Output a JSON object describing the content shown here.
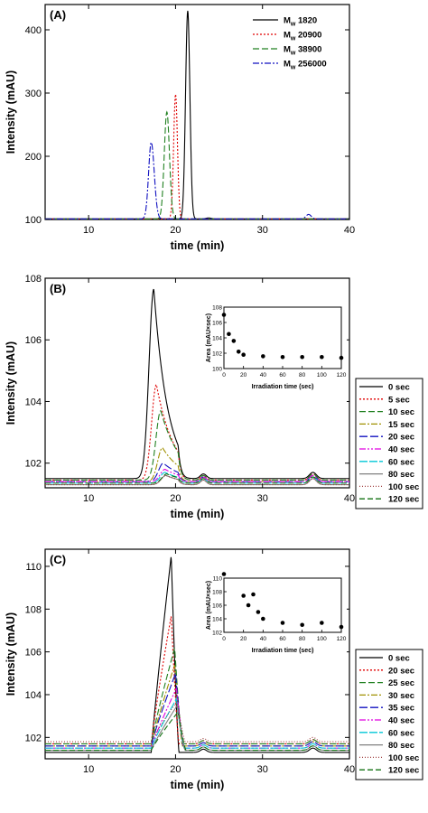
{
  "chart_data": [
    {
      "type": "line",
      "panel_label": "(A)",
      "xlabel": "time (min)",
      "ylabel": "Intensity (mAU)",
      "xlim": [
        5,
        40
      ],
      "ylim": [
        100,
        440
      ],
      "xticks": [
        10,
        20,
        30,
        40
      ],
      "yticks": [
        100,
        200,
        300,
        400
      ],
      "legend": "top-right",
      "series": [
        {
          "name": "Mw 1820",
          "label_main": "M",
          "label_sub": "w",
          "label_rest": " 1820",
          "color": "#000000",
          "dash": "",
          "baseline": 101,
          "peaks": [
            {
              "center": 21.4,
              "height": 329,
              "sigmaL": 0.25,
              "sigmaR": 0.25
            },
            {
              "center": 23.8,
              "height": 1.5,
              "sigmaL": 0.3,
              "sigmaR": 0.3
            }
          ]
        },
        {
          "name": "Mw 20900",
          "label_main": "M",
          "label_sub": "w",
          "label_rest": " 20900",
          "color": "#e00000",
          "dash": "2,2",
          "baseline": 101,
          "peaks": [
            {
              "center": 20.0,
              "height": 197,
              "sigmaL": 0.22,
              "sigmaR": 0.22
            }
          ]
        },
        {
          "name": "Mw 38900",
          "label_main": "M",
          "label_sub": "w",
          "label_rest": " 38900",
          "color": "#208020",
          "dash": "7,3",
          "baseline": 101,
          "peaks": [
            {
              "center": 19.0,
              "height": 169,
              "sigmaL": 0.3,
              "sigmaR": 0.3
            }
          ]
        },
        {
          "name": "Mw 256000",
          "label_main": "M",
          "label_sub": "w",
          "label_rest": " 256000",
          "color": "#1010c0",
          "dash": "7,2,2,2",
          "baseline": 101,
          "peaks": [
            {
              "center": 17.2,
              "height": 121,
              "sigmaL": 0.3,
              "sigmaR": 0.35
            },
            {
              "center": 35.3,
              "height": 7,
              "sigmaL": 0.3,
              "sigmaR": 0.3
            }
          ]
        }
      ]
    },
    {
      "type": "line",
      "panel_label": "(B)",
      "xlabel": "time (min)",
      "ylabel": "Intensity (mAU)",
      "xlim": [
        5,
        40
      ],
      "ylim": [
        101.2,
        108
      ],
      "xticks": [
        10,
        20,
        30,
        40
      ],
      "yticks": [
        102,
        104,
        106,
        108
      ],
      "legend": "right",
      "series": [
        {
          "name": "0 sec",
          "color": "#000000",
          "dash": "",
          "baseline": 101.5,
          "peak": 6.15,
          "center": 17.5
        },
        {
          "name": "5 sec",
          "color": "#e00000",
          "dash": "2,2",
          "baseline": 101.45,
          "peak": 3.1,
          "center": 17.8
        },
        {
          "name": "10 sec",
          "color": "#208020",
          "dash": "7,3",
          "baseline": 101.45,
          "peak": 2.25,
          "center": 18.3
        },
        {
          "name": "15 sec",
          "color": "#a09000",
          "dash": "7,2,2,2",
          "baseline": 101.4,
          "peak": 1.1,
          "center": 18.5
        },
        {
          "name": "20 sec",
          "color": "#1010c0",
          "dash": "9,3",
          "baseline": 101.4,
          "peak": 0.6,
          "center": 18.6
        },
        {
          "name": "40 sec",
          "color": "#e000e0",
          "dash": "7,2,2,2,2,2",
          "baseline": 101.4,
          "peak": 0.4,
          "center": 18.8
        },
        {
          "name": "60 sec",
          "color": "#00c8d8",
          "dash": "9,2",
          "baseline": 101.35,
          "peak": 0.35,
          "center": 18.8
        },
        {
          "name": "80 sec",
          "color": "#808080",
          "dash": "",
          "baseline": 101.3,
          "peak": 0.3,
          "center": 18.9
        },
        {
          "name": "100 sec",
          "color": "#a04040",
          "dash": "1,2",
          "baseline": 101.3,
          "peak": 0.3,
          "center": 18.9
        },
        {
          "name": "120 sec",
          "color": "#107010",
          "dash": "6,3",
          "baseline": 101.35,
          "peak": 0.3,
          "center": 19.0
        }
      ],
      "inset": {
        "type": "scatter",
        "xlabel": "Irradiation time (sec)",
        "ylabel": "Area (mAU×sec)",
        "xlim": [
          0,
          120
        ],
        "ylim": [
          100,
          108
        ],
        "xticks": [
          0,
          20,
          40,
          60,
          80,
          100,
          120
        ],
        "yticks": [
          100,
          102,
          104,
          106,
          108
        ],
        "x": [
          0,
          5,
          10,
          15,
          20,
          40,
          60,
          80,
          100,
          120
        ],
        "y": [
          107.0,
          104.5,
          103.6,
          102.2,
          101.8,
          101.6,
          101.5,
          101.5,
          101.5,
          101.4
        ]
      }
    },
    {
      "type": "line",
      "panel_label": "(C)",
      "xlabel": "time (min)",
      "ylabel": "Intensity (mAU)",
      "xlim": [
        5,
        40
      ],
      "ylim": [
        101,
        110.8
      ],
      "xticks": [
        10,
        20,
        30,
        40
      ],
      "yticks": [
        102,
        104,
        106,
        108,
        110
      ],
      "legend": "right",
      "series": [
        {
          "name": "0 sec",
          "color": "#000000",
          "dash": "",
          "baseline": 101.3,
          "peak": 9.2,
          "center": 19.5
        },
        {
          "name": "20 sec",
          "color": "#e00000",
          "dash": "2,2",
          "baseline": 101.7,
          "peak": 6.0,
          "center": 19.5
        },
        {
          "name": "25 sec",
          "color": "#208020",
          "dash": "7,3",
          "baseline": 101.7,
          "peak": 4.5,
          "center": 19.9
        },
        {
          "name": "30 sec",
          "color": "#a09000",
          "dash": "7,2,2,2",
          "baseline": 101.6,
          "peak": 3.8,
          "center": 19.9
        },
        {
          "name": "35 sec",
          "color": "#1010c0",
          "dash": "9,3",
          "baseline": 101.6,
          "peak": 3.4,
          "center": 20.0
        },
        {
          "name": "40 sec",
          "color": "#e000e0",
          "dash": "7,2,2,2,2,2",
          "baseline": 101.5,
          "peak": 2.8,
          "center": 20.1
        },
        {
          "name": "60 sec",
          "color": "#00c8d8",
          "dash": "9,2",
          "baseline": 101.5,
          "peak": 2.3,
          "center": 20.1
        },
        {
          "name": "80 sec",
          "color": "#808080",
          "dash": "",
          "baseline": 101.4,
          "peak": 2.1,
          "center": 20.2
        },
        {
          "name": "100 sec",
          "color": "#a04040",
          "dash": "1,2",
          "baseline": 101.8,
          "peak": 1.9,
          "center": 20.2
        },
        {
          "name": "120 sec",
          "color": "#107010",
          "dash": "6,3",
          "baseline": 101.4,
          "peak": 1.8,
          "center": 20.3
        }
      ],
      "inset": {
        "type": "scatter",
        "xlabel": "Irradiation time (sec)",
        "ylabel": "Area (mAU×sec)",
        "xlim": [
          0,
          120
        ],
        "ylim": [
          102,
          110
        ],
        "xticks": [
          0,
          20,
          40,
          60,
          80,
          100,
          120
        ],
        "yticks": [
          102,
          104,
          106,
          108,
          110
        ],
        "x": [
          0,
          20,
          25,
          30,
          35,
          40,
          60,
          80,
          100,
          120
        ],
        "y": [
          110.6,
          107.4,
          106.0,
          107.6,
          105.0,
          104.0,
          103.4,
          103.1,
          103.4,
          102.8
        ]
      }
    }
  ]
}
